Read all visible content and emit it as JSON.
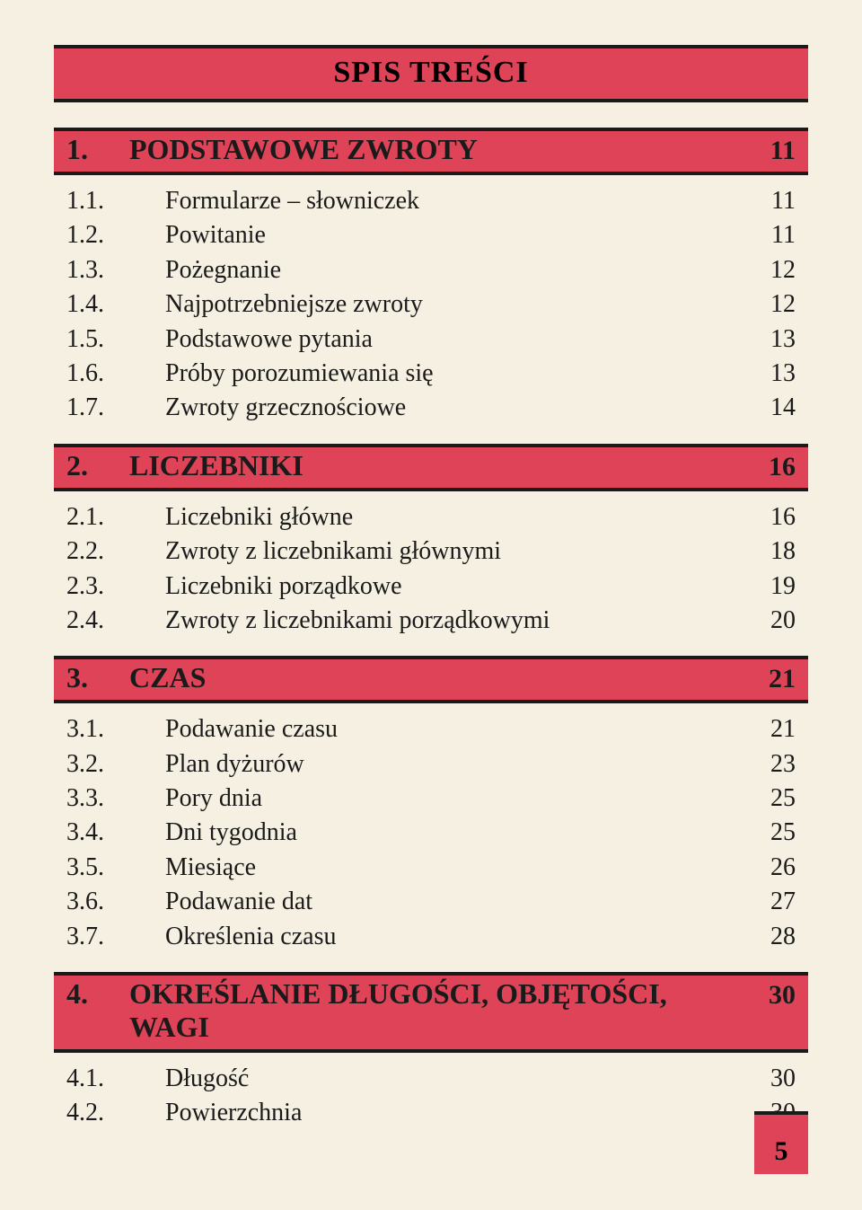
{
  "colors": {
    "bar_bg": "#de4358",
    "bar_border": "#1a1a1a",
    "page_bg": "#f5f0e1",
    "text": "#1a1a1a"
  },
  "typography": {
    "title_fontsize": 34,
    "section_fontsize": 32,
    "entry_fontsize": 28,
    "font_family": "Times New Roman"
  },
  "title": "SPIS TREŚCI",
  "page_number": "5",
  "sections": [
    {
      "num": "1.",
      "title": "PODSTAWOWE ZWROTY",
      "page": "11",
      "entries": [
        {
          "num": "1.1.",
          "title": "Formularze – słowniczek",
          "page": "11"
        },
        {
          "num": "1.2.",
          "title": "Powitanie",
          "page": "11"
        },
        {
          "num": "1.3.",
          "title": "Pożegnanie",
          "page": "12"
        },
        {
          "num": "1.4.",
          "title": "Najpotrzebniejsze zwroty",
          "page": "12"
        },
        {
          "num": "1.5.",
          "title": "Podstawowe pytania",
          "page": "13"
        },
        {
          "num": "1.6.",
          "title": "Próby porozumiewania się",
          "page": "13"
        },
        {
          "num": "1.7.",
          "title": "Zwroty grzecznościowe",
          "page": "14"
        }
      ]
    },
    {
      "num": "2.",
      "title": "LICZEBNIKI",
      "page": "16",
      "entries": [
        {
          "num": "2.1.",
          "title": "Liczebniki główne",
          "page": "16"
        },
        {
          "num": "2.2.",
          "title": "Zwroty z liczebnikami głównymi",
          "page": "18"
        },
        {
          "num": "2.3.",
          "title": "Liczebniki porządkowe",
          "page": "19"
        },
        {
          "num": "2.4.",
          "title": "Zwroty z liczebnikami porządkowymi",
          "page": "20"
        }
      ]
    },
    {
      "num": "3.",
      "title": "CZAS",
      "page": "21",
      "entries": [
        {
          "num": "3.1.",
          "title": "Podawanie czasu",
          "page": "21"
        },
        {
          "num": "3.2.",
          "title": "Plan dyżurów",
          "page": "23"
        },
        {
          "num": "3.3.",
          "title": "Pory dnia",
          "page": "25"
        },
        {
          "num": "3.4.",
          "title": "Dni tygodnia",
          "page": "25"
        },
        {
          "num": "3.5.",
          "title": "Miesiące",
          "page": "26"
        },
        {
          "num": "3.6.",
          "title": "Podawanie dat",
          "page": "27"
        },
        {
          "num": "3.7.",
          "title": "Określenia czasu",
          "page": "28"
        }
      ]
    },
    {
      "num": "4.",
      "title": "OKREŚLANIE DŁUGOŚCI, OBJĘTOŚCI, WAGI",
      "page": "30",
      "entries": [
        {
          "num": "4.1.",
          "title": "Długość",
          "page": "30"
        },
        {
          "num": "4.2.",
          "title": "Powierzchnia",
          "page": "30"
        }
      ]
    }
  ]
}
